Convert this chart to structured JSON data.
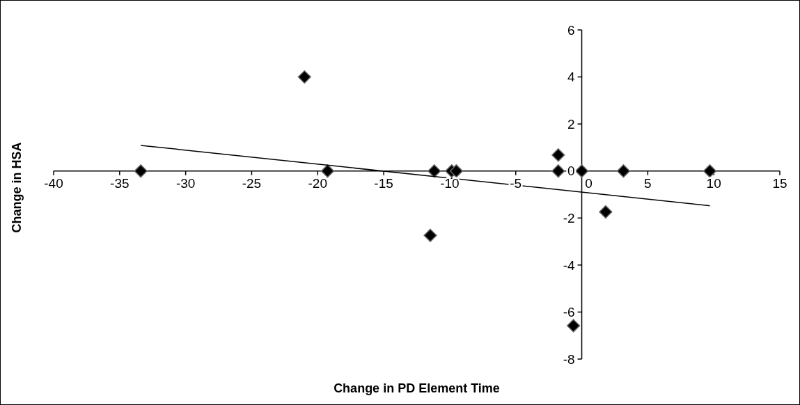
{
  "chart_data": {
    "type": "scatter",
    "xlabel": "Change in PD Element Time",
    "ylabel": "Change in HSA",
    "xlim": [
      -40,
      15
    ],
    "ylim": [
      -8,
      6
    ],
    "xticks": [
      -40,
      -35,
      -30,
      -25,
      -20,
      -15,
      -10,
      -5,
      0,
      5,
      10,
      15
    ],
    "yticks": [
      -8,
      -6,
      -4,
      -2,
      0,
      2,
      4,
      6
    ],
    "marker": "diamond",
    "grid": false,
    "series": [
      {
        "color": "#000000",
        "x": [
          -33.4,
          -21.0,
          -19.25,
          -11.17,
          -9.85,
          -9.5,
          -1.78,
          -1.78,
          0,
          3.16,
          9.7,
          1.81,
          -11.47,
          -0.63
        ],
        "values": [
          0,
          4,
          0,
          0,
          0,
          0,
          0.68,
          0,
          0,
          0,
          0,
          -1.74,
          -2.74,
          -6.58
        ]
      },
      {
        "type": "line",
        "marker": "none",
        "color": "#000000",
        "x": [
          -33.4,
          9.7
        ],
        "values": [
          1.09,
          -1.48
        ]
      }
    ]
  }
}
